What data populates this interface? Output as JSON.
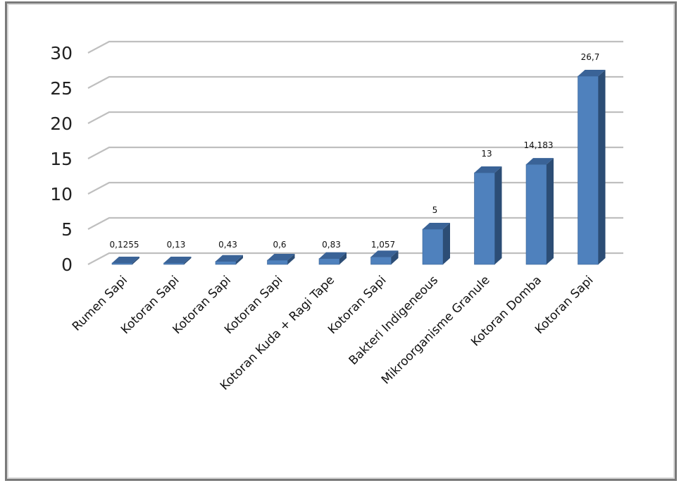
{
  "chart_data": {
    "type": "bar",
    "style": "3d-clustered-column",
    "title": "",
    "xlabel": "",
    "ylabel": "",
    "ylim": [
      0,
      30
    ],
    "yticks": [
      0,
      5,
      10,
      15,
      20,
      25,
      30
    ],
    "grid": true,
    "legend": null,
    "categories": [
      "Rumen Sapi",
      "Kotoran Sapi",
      "Kotoran Sapi",
      "Kotoran Sapi",
      "Kotoran Kuda + Ragi Tape",
      "Kotoran Sapi",
      "Bakteri Indigeneous",
      "Mikroorganisme Granule",
      "Kotoran Domba",
      "Kotoran Sapi"
    ],
    "values": [
      0.1255,
      0.13,
      0.43,
      0.6,
      0.83,
      1.057,
      5,
      13,
      14.183,
      26.7
    ],
    "data_labels": [
      "0,1255",
      "0,13",
      "0,43",
      "0,6",
      "0,83",
      "1,057",
      "5",
      "13",
      "14,183",
      "26,7"
    ],
    "colors": {
      "bar_front": "#4f81bd",
      "bar_side": "#2c4d75",
      "bar_top": "#3a6397",
      "gridline": "#bfbfbf",
      "frame": "#7a7a7a"
    }
  }
}
